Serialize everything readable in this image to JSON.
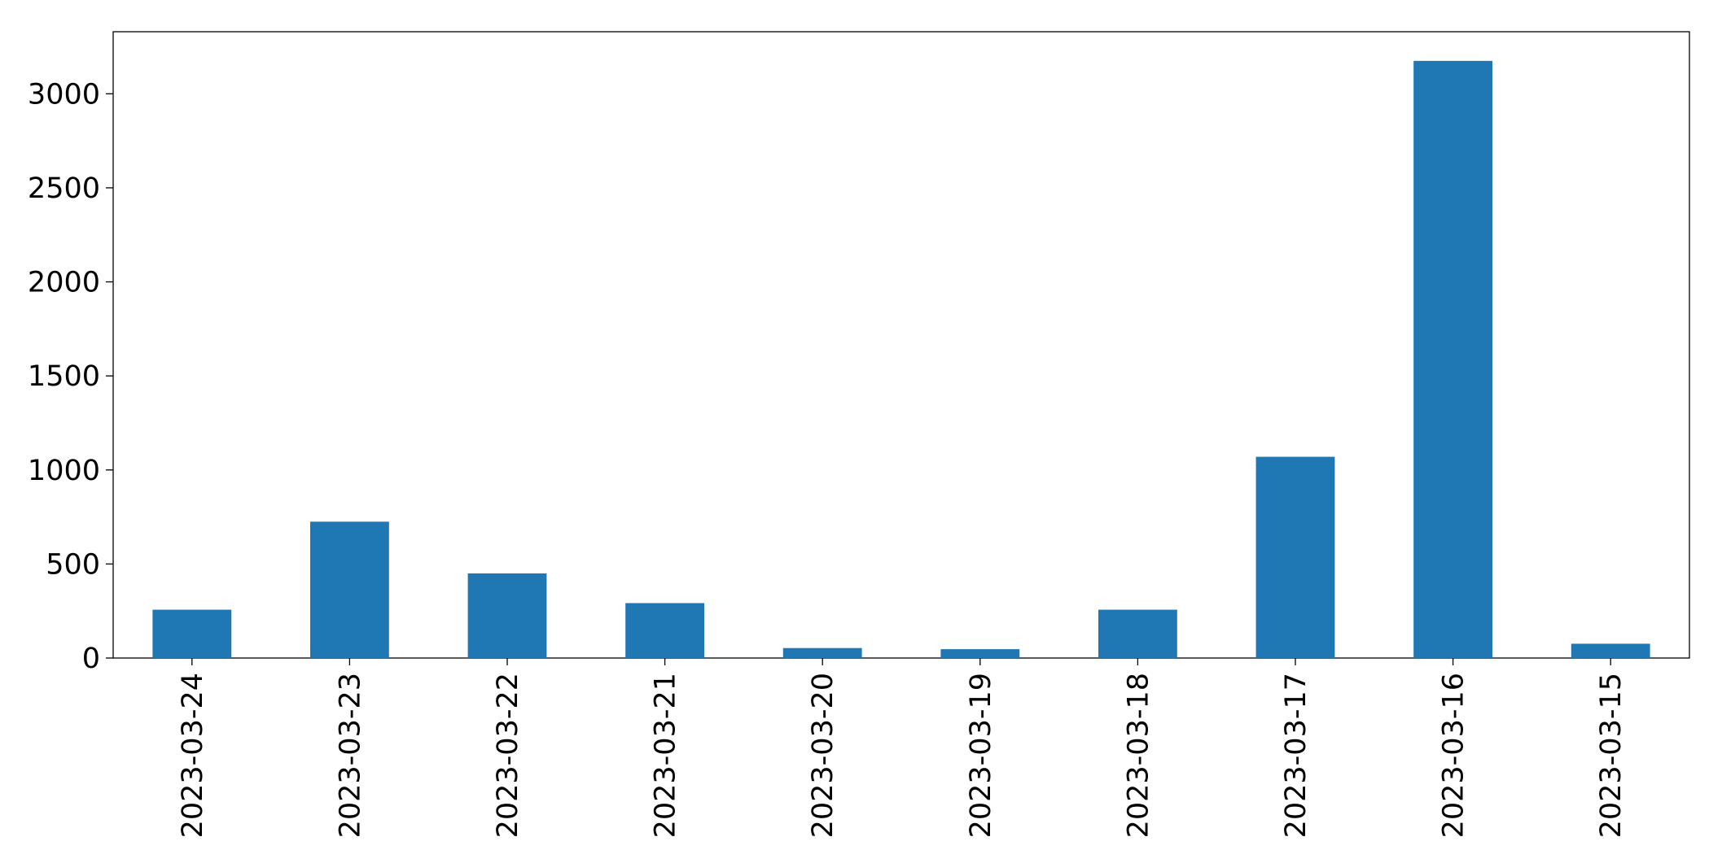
{
  "chart_data": {
    "type": "bar",
    "categories": [
      "2023-03-24",
      "2023-03-23",
      "2023-03-22",
      "2023-03-21",
      "2023-03-20",
      "2023-03-19",
      "2023-03-18",
      "2023-03-17",
      "2023-03-16",
      "2023-03-15"
    ],
    "values": [
      257,
      725,
      450,
      292,
      53,
      47,
      257,
      1070,
      3175,
      76
    ],
    "color": "#1f77b4",
    "ylim": [
      0,
      3330
    ],
    "yticks": [
      0,
      500,
      1000,
      1500,
      2000,
      2500,
      3000
    ],
    "grid": false
  }
}
